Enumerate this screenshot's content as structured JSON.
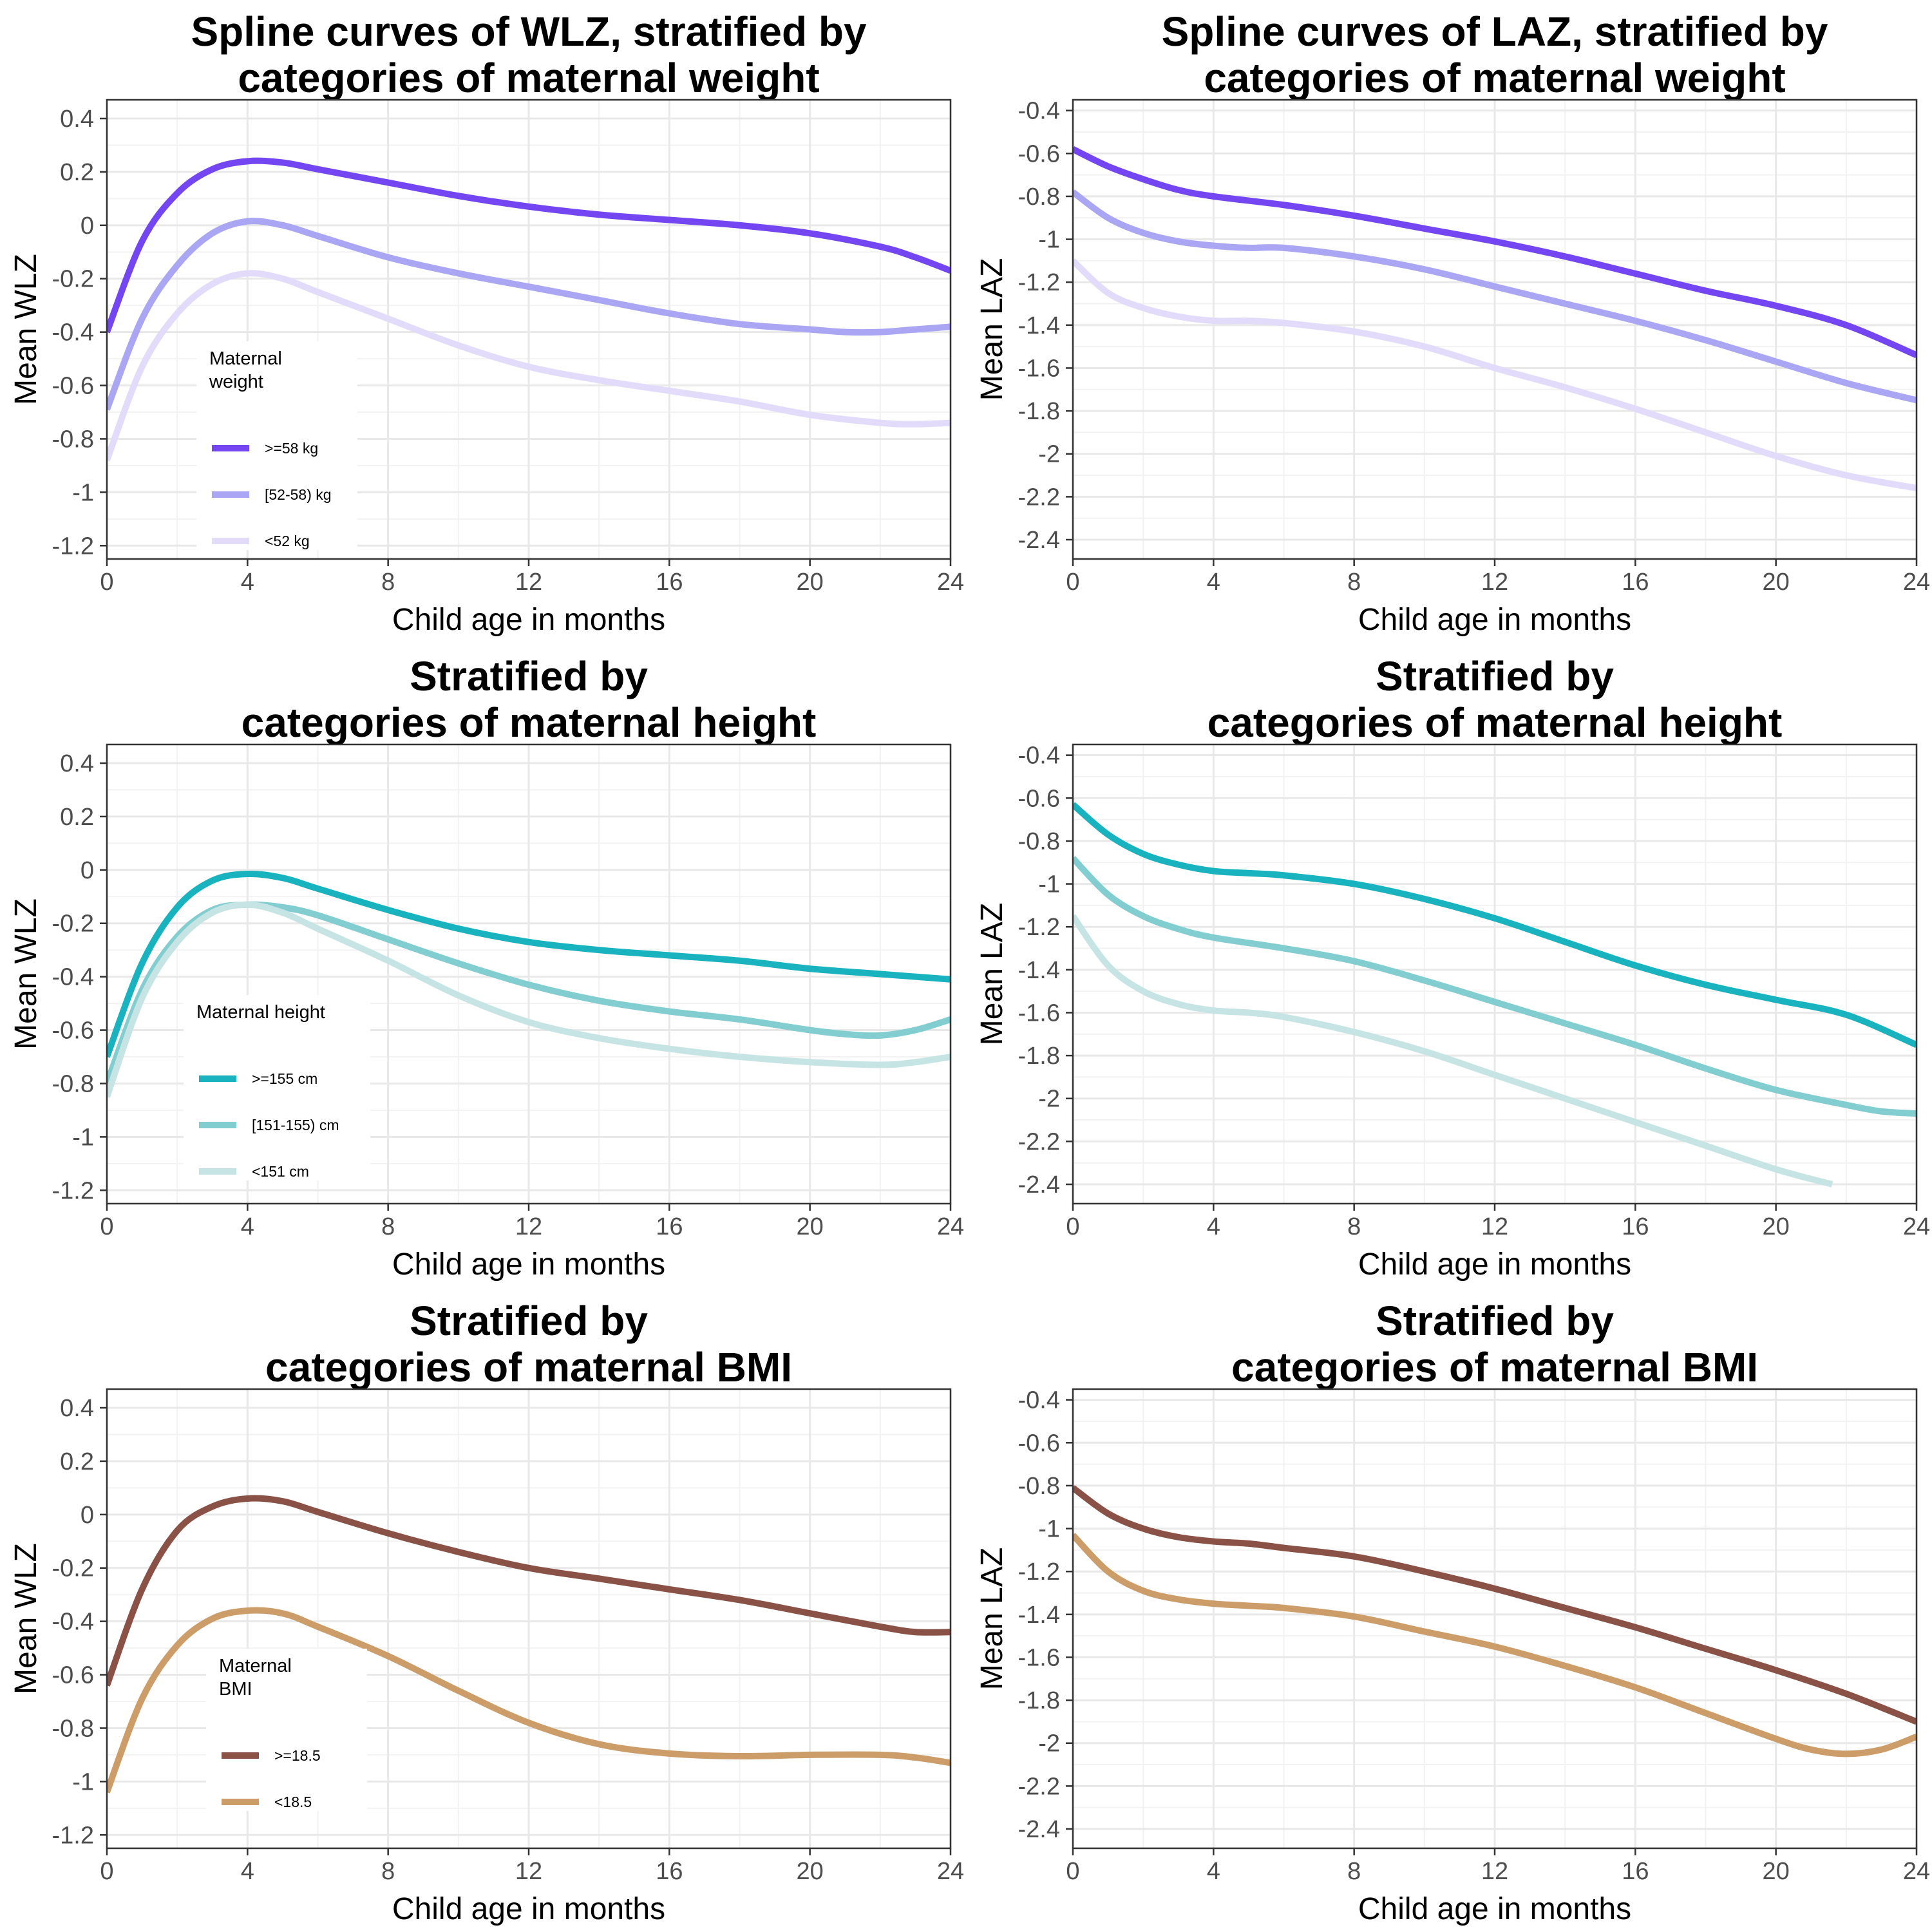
{
  "chart_data": [
    {
      "type": "line",
      "title": "Spline curves of WLZ, stratified by",
      "subtitle": "categories of maternal weight",
      "xlabel": "Child age in months",
      "ylabel": "Mean WLZ",
      "xlim": [
        0,
        24
      ],
      "ylim": [
        -1.25,
        0.47
      ],
      "xticks": [
        0,
        4,
        8,
        12,
        16,
        20,
        24
      ],
      "xtick_labels": [
        "0",
        "4",
        "8",
        "12",
        "16",
        "20",
        "24"
      ],
      "yticks": [
        0.4,
        0.2,
        0,
        -0.2,
        -0.4,
        -0.6,
        -0.8,
        -1,
        -1.2
      ],
      "ytick_labels": [
        "0.4",
        "0.2",
        "0",
        "-0.2",
        "-0.4",
        "-0.6",
        "-0.8",
        "-1",
        "-1.2"
      ],
      "grid": true,
      "legend": {
        "title": [
          "Maternal",
          "weight"
        ],
        "placement": "inside-bottom-left",
        "labels": [
          ">=58 kg",
          "[52-58) kg",
          "<52 kg"
        ]
      },
      "series": [
        {
          "name": ">=58 kg",
          "color": "#7446f2",
          "x": [
            0,
            1,
            2,
            3,
            4,
            5,
            6,
            8,
            10,
            12,
            14,
            16,
            18,
            20,
            22,
            23,
            24
          ],
          "y": [
            -0.4,
            -0.06,
            0.12,
            0.21,
            0.24,
            0.235,
            0.21,
            0.16,
            0.11,
            0.07,
            0.04,
            0.02,
            0.0,
            -0.03,
            -0.08,
            -0.12,
            -0.17
          ]
        },
        {
          "name": "[52-58) kg",
          "color": "#aaa6f4",
          "x": [
            0,
            1,
            2,
            3,
            4,
            5,
            6,
            8,
            10,
            12,
            14,
            16,
            18,
            20,
            21,
            22,
            23,
            24
          ],
          "y": [
            -0.69,
            -0.35,
            -0.15,
            -0.03,
            0.015,
            0.0,
            -0.04,
            -0.12,
            -0.18,
            -0.23,
            -0.28,
            -0.33,
            -0.37,
            -0.39,
            -0.4,
            -0.4,
            -0.39,
            -0.38
          ]
        },
        {
          "name": "<52 kg",
          "color": "#e2dcfa",
          "x": [
            0,
            1,
            2,
            3,
            4,
            5,
            6,
            8,
            10,
            12,
            14,
            16,
            18,
            20,
            22,
            23,
            24
          ],
          "y": [
            -0.88,
            -0.53,
            -0.33,
            -0.22,
            -0.18,
            -0.2,
            -0.25,
            -0.35,
            -0.45,
            -0.53,
            -0.58,
            -0.62,
            -0.66,
            -0.71,
            -0.74,
            -0.745,
            -0.74
          ]
        }
      ]
    },
    {
      "type": "line",
      "title": "Spline curves of LAZ, stratified by",
      "subtitle": "categories of maternal weight",
      "xlabel": "Child age in months",
      "ylabel": "Mean LAZ",
      "xlim": [
        0,
        24
      ],
      "ylim": [
        -2.49,
        -0.35
      ],
      "xticks": [
        0,
        4,
        8,
        12,
        16,
        20,
        24
      ],
      "xtick_labels": [
        "0",
        "4",
        "8",
        "12",
        "16",
        "20",
        "24"
      ],
      "yticks": [
        -0.4,
        -0.6,
        -0.8,
        -1,
        -1.2,
        -1.4,
        -1.6,
        -1.8,
        -2,
        -2.2,
        -2.4
      ],
      "ytick_labels": [
        "-0.4",
        "-0.6",
        "-0.8",
        "-1",
        "-1.2",
        "-1.4",
        "-1.6",
        "-1.8",
        "-2",
        "-2.2",
        "-2.4"
      ],
      "grid": true,
      "series": [
        {
          "name": ">=58 kg",
          "color": "#7446f2",
          "x": [
            0,
            1,
            2,
            3,
            4,
            6,
            8,
            10,
            12,
            14,
            16,
            18,
            20,
            22,
            24
          ],
          "y": [
            -0.58,
            -0.66,
            -0.72,
            -0.77,
            -0.8,
            -0.84,
            -0.89,
            -0.95,
            -1.01,
            -1.08,
            -1.16,
            -1.24,
            -1.31,
            -1.4,
            -1.54
          ]
        },
        {
          "name": "[52-58) kg",
          "color": "#aaa6f4",
          "x": [
            0,
            1,
            2,
            3,
            4,
            5,
            6,
            8,
            10,
            12,
            14,
            16,
            18,
            20,
            22,
            24
          ],
          "y": [
            -0.78,
            -0.9,
            -0.97,
            -1.01,
            -1.03,
            -1.04,
            -1.04,
            -1.08,
            -1.14,
            -1.22,
            -1.3,
            -1.38,
            -1.47,
            -1.57,
            -1.67,
            -1.75
          ]
        },
        {
          "name": "<52 kg",
          "color": "#e2dcfa",
          "x": [
            0,
            1,
            2,
            3,
            4,
            5,
            6,
            8,
            10,
            12,
            14,
            16,
            18,
            20,
            22,
            24
          ],
          "y": [
            -1.1,
            -1.25,
            -1.32,
            -1.36,
            -1.38,
            -1.38,
            -1.39,
            -1.43,
            -1.5,
            -1.6,
            -1.69,
            -1.79,
            -1.9,
            -2.01,
            -2.1,
            -2.16
          ]
        }
      ]
    },
    {
      "type": "line",
      "title": "Stratified by",
      "subtitle": "categories of maternal height",
      "xlabel": "Child age in months",
      "ylabel": "Mean WLZ",
      "xlim": [
        0,
        24
      ],
      "ylim": [
        -1.25,
        0.47
      ],
      "xticks": [
        0,
        4,
        8,
        12,
        16,
        20,
        24
      ],
      "xtick_labels": [
        "0",
        "4",
        "8",
        "12",
        "16",
        "20",
        "24"
      ],
      "yticks": [
        0.4,
        0.2,
        0,
        -0.2,
        -0.4,
        -0.6,
        -0.8,
        -1,
        -1.2
      ],
      "ytick_labels": [
        "0.4",
        "0.2",
        "0",
        "-0.2",
        "-0.4",
        "-0.6",
        "-0.8",
        "-1",
        "-1.2"
      ],
      "grid": true,
      "legend": {
        "title": [
          "Maternal height"
        ],
        "placement": "inside-bottom-left",
        "labels": [
          ">=155 cm",
          "[151-155) cm",
          "<151 cm"
        ]
      },
      "series": [
        {
          "name": ">=155 cm",
          "color": "#18b3bf",
          "x": [
            0,
            1,
            2,
            3,
            4,
            5,
            6,
            8,
            10,
            12,
            14,
            16,
            18,
            20,
            22,
            24
          ],
          "y": [
            -0.7,
            -0.35,
            -0.14,
            -0.04,
            -0.015,
            -0.03,
            -0.07,
            -0.15,
            -0.22,
            -0.27,
            -0.3,
            -0.32,
            -0.34,
            -0.37,
            -0.39,
            -0.41
          ]
        },
        {
          "name": "[151-155) cm",
          "color": "#82cdd0",
          "x": [
            0,
            1,
            2,
            3,
            4,
            5,
            6,
            8,
            10,
            12,
            14,
            16,
            18,
            20,
            21,
            22,
            23,
            24
          ],
          "y": [
            -0.8,
            -0.45,
            -0.25,
            -0.15,
            -0.13,
            -0.14,
            -0.17,
            -0.26,
            -0.35,
            -0.43,
            -0.49,
            -0.53,
            -0.56,
            -0.6,
            -0.615,
            -0.62,
            -0.6,
            -0.56
          ]
        },
        {
          "name": "<151 cm",
          "color": "#c7e4e5",
          "x": [
            0,
            1,
            2,
            3,
            4,
            5,
            6,
            8,
            10,
            12,
            14,
            16,
            18,
            20,
            22,
            23,
            24
          ],
          "y": [
            -0.85,
            -0.48,
            -0.27,
            -0.16,
            -0.13,
            -0.16,
            -0.22,
            -0.34,
            -0.47,
            -0.57,
            -0.63,
            -0.67,
            -0.7,
            -0.72,
            -0.73,
            -0.72,
            -0.7
          ]
        }
      ]
    },
    {
      "type": "line",
      "title": "Stratified by",
      "subtitle": "categories of maternal height",
      "xlabel": "Child age in months",
      "ylabel": "Mean LAZ",
      "xlim": [
        0,
        24
      ],
      "ylim": [
        -2.49,
        -0.35
      ],
      "xticks": [
        0,
        4,
        8,
        12,
        16,
        20,
        24
      ],
      "xtick_labels": [
        "0",
        "4",
        "8",
        "12",
        "16",
        "20",
        "24"
      ],
      "yticks": [
        -0.4,
        -0.6,
        -0.8,
        -1,
        -1.2,
        -1.4,
        -1.6,
        -1.8,
        -2,
        -2.2,
        -2.4
      ],
      "ytick_labels": [
        "-0.4",
        "-0.6",
        "-0.8",
        "-1",
        "-1.2",
        "-1.4",
        "-1.6",
        "-1.8",
        "-2",
        "-2.2",
        "-2.4"
      ],
      "grid": true,
      "series": [
        {
          "name": ">=155 cm",
          "color": "#18b3bf",
          "x": [
            0,
            1,
            2,
            3,
            4,
            5,
            6,
            8,
            10,
            12,
            14,
            16,
            18,
            20,
            22,
            24
          ],
          "y": [
            -0.63,
            -0.77,
            -0.86,
            -0.91,
            -0.94,
            -0.95,
            -0.96,
            -1.0,
            -1.07,
            -1.16,
            -1.27,
            -1.38,
            -1.47,
            -1.54,
            -1.61,
            -1.75
          ]
        },
        {
          "name": "[151-155) cm",
          "color": "#82cdd0",
          "x": [
            0,
            1,
            2,
            3,
            4,
            6,
            8,
            10,
            12,
            14,
            16,
            18,
            20,
            22,
            23,
            24
          ],
          "y": [
            -0.88,
            -1.05,
            -1.15,
            -1.21,
            -1.25,
            -1.3,
            -1.36,
            -1.45,
            -1.55,
            -1.65,
            -1.75,
            -1.86,
            -1.96,
            -2.03,
            -2.06,
            -2.07
          ]
        },
        {
          "name": "<151 cm",
          "color": "#c7e4e5",
          "x": [
            0,
            1,
            2,
            3,
            4,
            5,
            6,
            8,
            10,
            12,
            14,
            16,
            18,
            20,
            21.6
          ],
          "y": [
            -1.15,
            -1.38,
            -1.5,
            -1.56,
            -1.59,
            -1.6,
            -1.62,
            -1.69,
            -1.78,
            -1.89,
            -2.0,
            -2.11,
            -2.22,
            -2.33,
            -2.4
          ]
        }
      ]
    },
    {
      "type": "line",
      "title": "Stratified by",
      "subtitle": "categories of maternal BMI",
      "xlabel": "Child age in months",
      "ylabel": "Mean WLZ",
      "xlim": [
        0,
        24
      ],
      "ylim": [
        -1.25,
        0.47
      ],
      "xticks": [
        0,
        4,
        8,
        12,
        16,
        20,
        24
      ],
      "xtick_labels": [
        "0",
        "4",
        "8",
        "12",
        "16",
        "20",
        "24"
      ],
      "yticks": [
        0.4,
        0.2,
        0,
        -0.2,
        -0.4,
        -0.6,
        -0.8,
        -1,
        -1.2
      ],
      "ytick_labels": [
        "0.4",
        "0.2",
        "0",
        "-0.2",
        "-0.4",
        "-0.6",
        "-0.8",
        "-1",
        "-1.2"
      ],
      "grid": true,
      "legend": {
        "title": [
          "Maternal",
          "BMI"
        ],
        "placement": "inside-bottom-left",
        "labels": [
          ">=18.5",
          "<18.5"
        ]
      },
      "series": [
        {
          "name": ">=18.5",
          "color": "#8a5247",
          "x": [
            0,
            1,
            2,
            3,
            4,
            5,
            6,
            8,
            10,
            12,
            14,
            16,
            18,
            20,
            22,
            23,
            24
          ],
          "y": [
            -0.64,
            -0.28,
            -0.06,
            0.03,
            0.06,
            0.05,
            0.01,
            -0.07,
            -0.14,
            -0.2,
            -0.24,
            -0.28,
            -0.32,
            -0.37,
            -0.42,
            -0.44,
            -0.44
          ]
        },
        {
          "name": "<18.5",
          "color": "#cc9d69",
          "x": [
            0,
            1,
            2,
            3,
            4,
            5,
            6,
            8,
            10,
            12,
            14,
            16,
            18,
            20,
            22,
            23,
            24
          ],
          "y": [
            -1.04,
            -0.69,
            -0.49,
            -0.39,
            -0.36,
            -0.37,
            -0.42,
            -0.53,
            -0.66,
            -0.78,
            -0.86,
            -0.895,
            -0.905,
            -0.9,
            -0.9,
            -0.91,
            -0.93
          ]
        }
      ]
    },
    {
      "type": "line",
      "title": "Stratified by",
      "subtitle": "categories of maternal BMI",
      "xlabel": "Child age in months",
      "ylabel": "Mean LAZ",
      "xlim": [
        0,
        24
      ],
      "ylim": [
        -2.49,
        -0.35
      ],
      "xticks": [
        0,
        4,
        8,
        12,
        16,
        20,
        24
      ],
      "xtick_labels": [
        "0",
        "4",
        "8",
        "12",
        "16",
        "20",
        "24"
      ],
      "yticks": [
        -0.4,
        -0.6,
        -0.8,
        -1,
        -1.2,
        -1.4,
        -1.6,
        -1.8,
        -2,
        -2.2,
        -2.4
      ],
      "ytick_labels": [
        "-0.4",
        "-0.6",
        "-0.8",
        "-1",
        "-1.2",
        "-1.4",
        "-1.6",
        "-1.8",
        "-2",
        "-2.2",
        "-2.4"
      ],
      "grid": true,
      "series": [
        {
          "name": ">=18.5",
          "color": "#8a5247",
          "x": [
            0,
            1,
            2,
            3,
            4,
            5,
            6,
            8,
            10,
            12,
            14,
            16,
            18,
            20,
            22,
            24
          ],
          "y": [
            -0.81,
            -0.93,
            -1.0,
            -1.04,
            -1.06,
            -1.07,
            -1.09,
            -1.13,
            -1.2,
            -1.28,
            -1.37,
            -1.46,
            -1.56,
            -1.66,
            -1.77,
            -1.9
          ]
        },
        {
          "name": "<18.5",
          "color": "#cc9d69",
          "x": [
            0,
            1,
            2,
            3,
            4,
            5,
            6,
            8,
            10,
            12,
            14,
            16,
            18,
            20,
            21,
            22,
            23,
            24
          ],
          "y": [
            -1.03,
            -1.2,
            -1.29,
            -1.33,
            -1.35,
            -1.36,
            -1.37,
            -1.41,
            -1.48,
            -1.55,
            -1.64,
            -1.74,
            -1.86,
            -1.98,
            -2.03,
            -2.05,
            -2.03,
            -1.97
          ]
        }
      ]
    }
  ]
}
